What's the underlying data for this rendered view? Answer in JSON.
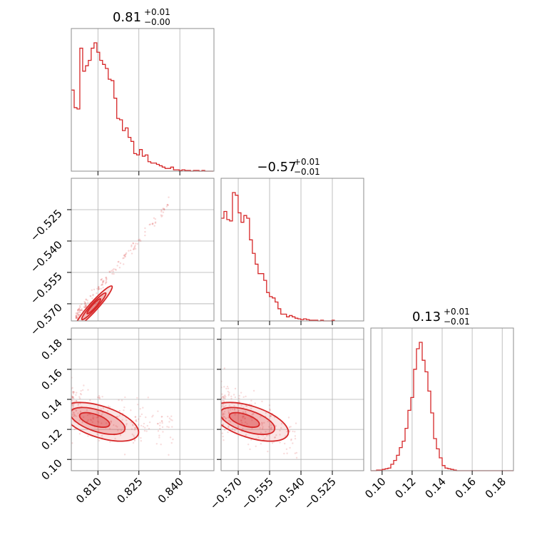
{
  "accent": "#d62728",
  "chart_data": {
    "type": "corner",
    "parameters": [
      {
        "title": "0.81",
        "err_plus": "+0.01",
        "err_minus": "−0.00",
        "range": [
          0.80025,
          0.8525
        ]
      },
      {
        "title": "−0.57",
        "err_plus": "+0.01",
        "err_minus": "−0.01",
        "range": [
          -0.5782,
          -0.51
        ]
      },
      {
        "title": "0.13",
        "err_plus": "+0.01",
        "err_minus": "−0.01",
        "range": [
          0.0925,
          0.1875
        ]
      }
    ],
    "ticks": {
      "p0": [
        "0.810",
        "0.825",
        "0.840"
      ],
      "p1": [
        "−0.570",
        "−0.555",
        "−0.540",
        "−0.525"
      ],
      "p2": [
        "0.10",
        "0.12",
        "0.14",
        "0.16",
        "0.18"
      ]
    },
    "tick_values": {
      "p0": [
        0.81,
        0.825,
        0.84
      ],
      "p1": [
        -0.57,
        -0.555,
        -0.54,
        -0.525
      ],
      "p2": [
        0.1,
        0.12,
        0.14,
        0.16,
        0.18
      ]
    },
    "histograms": [
      {
        "param": 0,
        "bin_start": 0.80025,
        "bin_width": 0.00104,
        "counts": [
          0.6,
          0.47,
          0.46,
          0.91,
          0.74,
          0.78,
          0.82,
          0.91,
          0.95,
          0.88,
          0.82,
          0.79,
          0.76,
          0.68,
          0.67,
          0.54,
          0.39,
          0.38,
          0.3,
          0.32,
          0.25,
          0.22,
          0.13,
          0.12,
          0.16,
          0.11,
          0.12,
          0.07,
          0.06,
          0.06,
          0.05,
          0.04,
          0.03,
          0.02,
          0.02,
          0.03,
          0.01,
          0.01,
          0.005,
          0.01,
          0.005,
          0.005,
          0,
          0.005,
          0.005,
          0,
          0.005,
          0,
          0,
          0
        ]
      },
      {
        "param": 1,
        "bin_start": -0.5782,
        "bin_width": 0.00136,
        "counts": [
          0.76,
          0.81,
          0.75,
          0.74,
          0.95,
          0.93,
          0.8,
          0.73,
          0.78,
          0.76,
          0.6,
          0.5,
          0.42,
          0.35,
          0.35,
          0.3,
          0.21,
          0.18,
          0.17,
          0.14,
          0.09,
          0.05,
          0.05,
          0.03,
          0.04,
          0.03,
          0.02,
          0.015,
          0.01,
          0.015,
          0.01,
          0.005,
          0.005,
          0.005,
          0,
          0.005,
          0,
          0,
          0,
          0.005
        ]
      },
      {
        "param": 2,
        "bin_start": 0.0925,
        "bin_width": 0.0019,
        "counts": [
          0,
          0,
          0.005,
          0.005,
          0.01,
          0.015,
          0.02,
          0.05,
          0.08,
          0.12,
          0.18,
          0.23,
          0.33,
          0.47,
          0.57,
          0.79,
          0.95,
          1.0,
          0.86,
          0.77,
          0.62,
          0.45,
          0.25,
          0.17,
          0.1,
          0.04,
          0.02,
          0.015,
          0.01,
          0.005,
          0,
          0,
          0,
          0,
          0,
          0,
          0,
          0,
          0,
          0,
          0,
          0,
          0,
          0,
          0,
          0,
          0,
          0,
          0,
          0
        ]
      }
    ],
    "correlations": [
      {
        "pair": [
          0,
          1
        ],
        "shape": "tight-positive"
      },
      {
        "pair": [
          0,
          2
        ],
        "shape": "negative-blob"
      },
      {
        "pair": [
          1,
          2
        ],
        "shape": "negative-blob"
      }
    ],
    "grid": true,
    "color": "#d62728"
  }
}
